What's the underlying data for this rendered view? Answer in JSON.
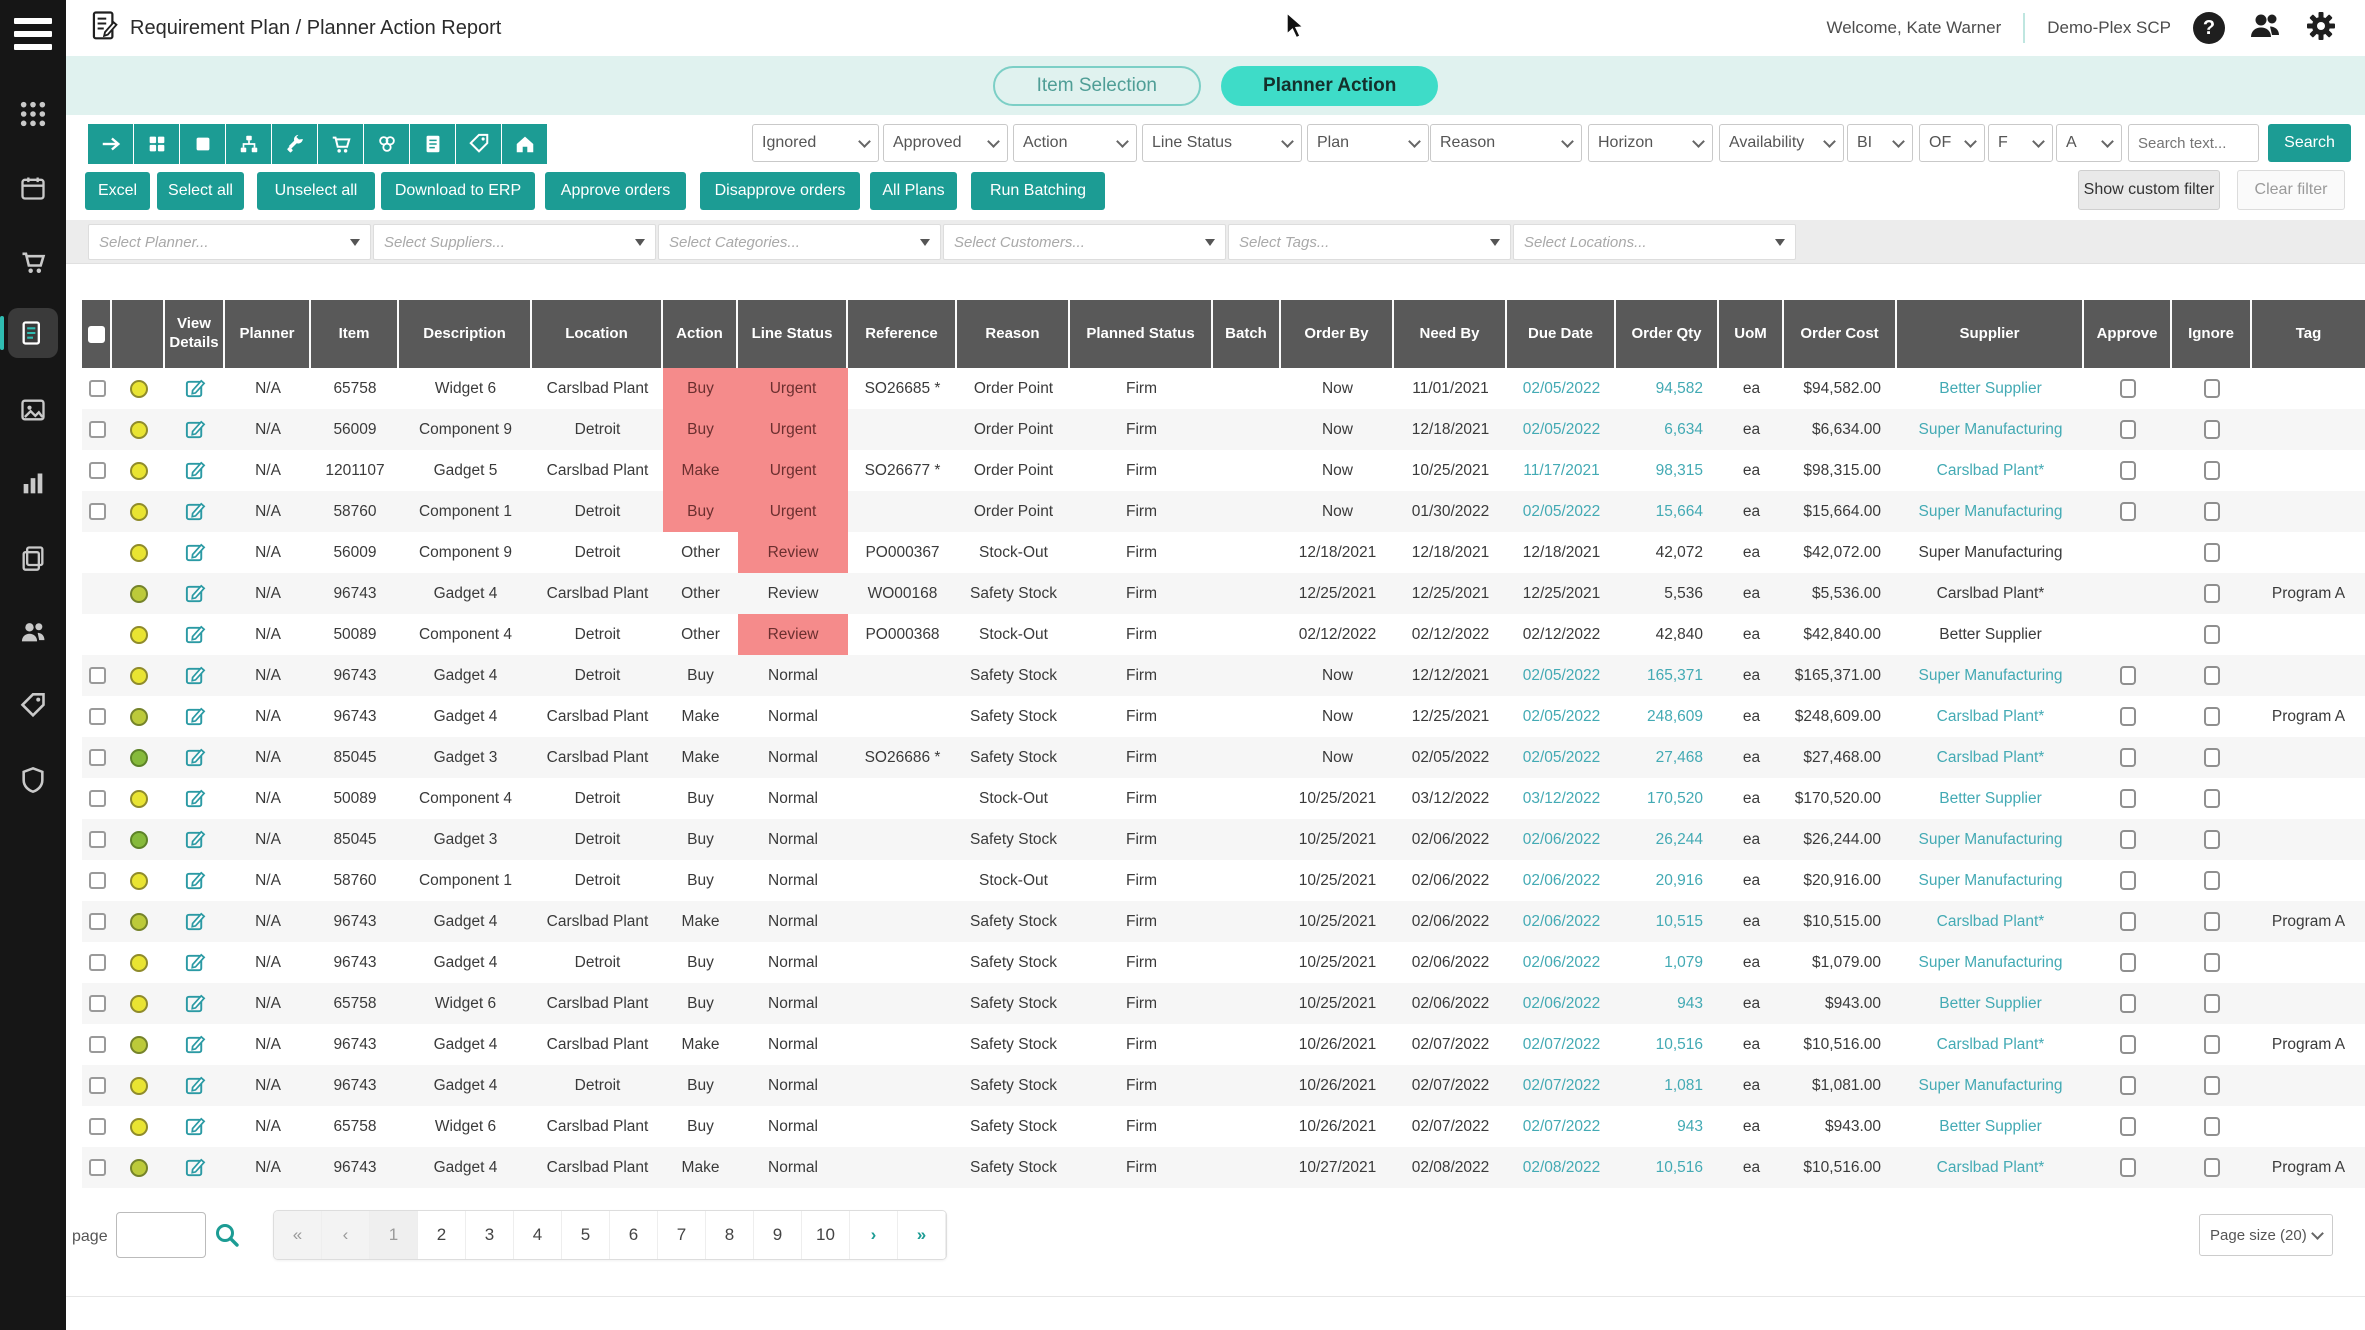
{
  "header": {
    "title": "Requirement Plan / Planner Action Report",
    "welcome": "Welcome, Kate Warner",
    "tenant": "Demo-Plex SCP",
    "help_glyph": "?"
  },
  "sidebar": {
    "items": [
      {
        "icon": "apps-icon",
        "active": false
      },
      {
        "icon": "calendar-icon",
        "active": false
      },
      {
        "icon": "cart-icon",
        "active": false
      },
      {
        "icon": "report-icon",
        "active": true
      },
      {
        "icon": "window-icon",
        "active": false
      },
      {
        "icon": "chart-icon",
        "active": false
      },
      {
        "icon": "copy-icon",
        "active": false
      },
      {
        "icon": "team-icon",
        "active": false
      },
      {
        "icon": "tag-icon",
        "active": false
      },
      {
        "icon": "shield-icon",
        "active": false
      }
    ]
  },
  "tabs": [
    {
      "label": "Item Selection",
      "active": false
    },
    {
      "label": "Planner Action",
      "active": true
    }
  ],
  "toolbar": {
    "icon_buttons": [
      "arrow-right-icon",
      "grid-icon",
      "square-icon",
      "sitemap-icon",
      "wrench-icon",
      "cart-icon",
      "cubes-icon",
      "document-icon",
      "tag-icon",
      "home-icon"
    ],
    "dropdowns": [
      "Ignored",
      "Approved",
      "Action",
      "Line Status",
      "Plan",
      "Reason",
      "Horizon",
      "Availability",
      "BI",
      "OF",
      "F",
      "A"
    ],
    "search_placeholder": "Search text...",
    "search_label": "Search"
  },
  "actions": {
    "buttons": [
      "Excel",
      "Select all",
      "Unselect all",
      "Download to ERP",
      "Approve orders",
      "Disapprove orders",
      "All Plans",
      "Run Batching"
    ],
    "show_custom_filter": "Show custom filter",
    "clear_filter": "Clear filter"
  },
  "filters": {
    "placeholders": [
      "Select Planner...",
      "Select Suppliers...",
      "Select Categories...",
      "Select Customers...",
      "Select Tags...",
      "Select Locations..."
    ]
  },
  "table": {
    "columns": [
      "",
      "",
      "View Details",
      "Planner",
      "Item",
      "Description",
      "Location",
      "Action",
      "Line Status",
      "Reference",
      "Reason",
      "Planned Status",
      "Batch",
      "Order By",
      "Need By",
      "Due Date",
      "Order Qty",
      "UoM",
      "Order Cost",
      "Supplier",
      "Approve",
      "Ignore",
      "Tag"
    ],
    "rows": [
      {
        "sel": true,
        "dot": "yellow",
        "planner": "N/A",
        "item": "65758",
        "desc": "Widget 6",
        "loc": "Carslbad Plant",
        "action": "Buy",
        "action_hl": true,
        "ls": "Urgent",
        "ls_hl": true,
        "ref": "SO26685 *",
        "reason": "Order Point",
        "ps": "Firm",
        "batch": "",
        "order_by": "Now",
        "need_by": "11/01/2021",
        "due": "02/05/2022",
        "qty": "94,582",
        "uom": "ea",
        "cost": "$94,582.00",
        "supplier": "Better Supplier",
        "link": true,
        "approve_cb": true,
        "ignore_cb": true,
        "tag": ""
      },
      {
        "sel": true,
        "dot": "yellow",
        "planner": "N/A",
        "item": "56009",
        "desc": "Component 9",
        "loc": "Detroit",
        "action": "Buy",
        "action_hl": true,
        "ls": "Urgent",
        "ls_hl": true,
        "ref": "",
        "reason": "Order Point",
        "ps": "Firm",
        "batch": "",
        "order_by": "Now",
        "need_by": "12/18/2021",
        "due": "02/05/2022",
        "qty": "6,634",
        "uom": "ea",
        "cost": "$6,634.00",
        "supplier": "Super Manufacturing",
        "link": true,
        "approve_cb": true,
        "ignore_cb": true,
        "tag": ""
      },
      {
        "sel": true,
        "dot": "yellow",
        "planner": "N/A",
        "item": "1201107",
        "desc": "Gadget 5",
        "loc": "Carslbad Plant",
        "action": "Make",
        "action_hl": true,
        "ls": "Urgent",
        "ls_hl": true,
        "ref": "SO26677 *",
        "reason": "Order Point",
        "ps": "Firm",
        "batch": "",
        "order_by": "Now",
        "need_by": "10/25/2021",
        "due": "11/17/2021",
        "qty": "98,315",
        "uom": "ea",
        "cost": "$98,315.00",
        "supplier": "Carslbad Plant*",
        "link": true,
        "approve_cb": true,
        "ignore_cb": true,
        "tag": ""
      },
      {
        "sel": true,
        "dot": "yellow",
        "planner": "N/A",
        "item": "58760",
        "desc": "Component 1",
        "loc": "Detroit",
        "action": "Buy",
        "action_hl": true,
        "ls": "Urgent",
        "ls_hl": true,
        "ref": "",
        "reason": "Order Point",
        "ps": "Firm",
        "batch": "",
        "order_by": "Now",
        "need_by": "01/30/2022",
        "due": "02/05/2022",
        "qty": "15,664",
        "uom": "ea",
        "cost": "$15,664.00",
        "supplier": "Super Manufacturing",
        "link": true,
        "approve_cb": true,
        "ignore_cb": true,
        "tag": ""
      },
      {
        "sel": false,
        "dot": "yellow",
        "planner": "N/A",
        "item": "56009",
        "desc": "Component 9",
        "loc": "Detroit",
        "action": "Other",
        "action_hl": false,
        "ls": "Review",
        "ls_hl": true,
        "ref": "PO000367",
        "reason": "Stock-Out",
        "ps": "Firm",
        "batch": "",
        "order_by": "12/18/2021",
        "need_by": "12/18/2021",
        "due": "12/18/2021",
        "qty": "42,072",
        "uom": "ea",
        "cost": "$42,072.00",
        "supplier": "Super Manufacturing",
        "link": false,
        "approve_cb": false,
        "ignore_cb": true,
        "tag": ""
      },
      {
        "sel": false,
        "dot": "olive",
        "planner": "N/A",
        "item": "96743",
        "desc": "Gadget 4",
        "loc": "Carslbad Plant",
        "action": "Other",
        "action_hl": false,
        "ls": "Review",
        "ls_hl": false,
        "ref": "WO00168",
        "reason": "Safety Stock",
        "ps": "Firm",
        "batch": "",
        "order_by": "12/25/2021",
        "need_by": "12/25/2021",
        "due": "12/25/2021",
        "qty": "5,536",
        "uom": "ea",
        "cost": "$5,536.00",
        "supplier": "Carslbad Plant*",
        "link": false,
        "approve_cb": false,
        "ignore_cb": true,
        "tag": "Program A"
      },
      {
        "sel": false,
        "dot": "yellow",
        "planner": "N/A",
        "item": "50089",
        "desc": "Component 4",
        "loc": "Detroit",
        "action": "Other",
        "action_hl": false,
        "ls": "Review",
        "ls_hl": true,
        "ref": "PO000368",
        "reason": "Stock-Out",
        "ps": "Firm",
        "batch": "",
        "order_by": "02/12/2022",
        "need_by": "02/12/2022",
        "due": "02/12/2022",
        "qty": "42,840",
        "uom": "ea",
        "cost": "$42,840.00",
        "supplier": "Better Supplier",
        "link": false,
        "approve_cb": false,
        "ignore_cb": true,
        "tag": ""
      },
      {
        "sel": true,
        "dot": "yellow",
        "planner": "N/A",
        "item": "96743",
        "desc": "Gadget 4",
        "loc": "Detroit",
        "action": "Buy",
        "action_hl": false,
        "ls": "Normal",
        "ls_hl": false,
        "ref": "",
        "reason": "Safety Stock",
        "ps": "Firm",
        "batch": "",
        "order_by": "Now",
        "need_by": "12/12/2021",
        "due": "02/05/2022",
        "qty": "165,371",
        "uom": "ea",
        "cost": "$165,371.00",
        "supplier": "Super Manufacturing",
        "link": true,
        "approve_cb": true,
        "ignore_cb": true,
        "tag": ""
      },
      {
        "sel": true,
        "dot": "olive",
        "planner": "N/A",
        "item": "96743",
        "desc": "Gadget 4",
        "loc": "Carslbad Plant",
        "action": "Make",
        "action_hl": false,
        "ls": "Normal",
        "ls_hl": false,
        "ref": "",
        "reason": "Safety Stock",
        "ps": "Firm",
        "batch": "",
        "order_by": "Now",
        "need_by": "12/25/2021",
        "due": "02/05/2022",
        "qty": "248,609",
        "uom": "ea",
        "cost": "$248,609.00",
        "supplier": "Carslbad Plant*",
        "link": true,
        "approve_cb": true,
        "ignore_cb": true,
        "tag": "Program A"
      },
      {
        "sel": true,
        "dot": "green",
        "planner": "N/A",
        "item": "85045",
        "desc": "Gadget 3",
        "loc": "Carslbad Plant",
        "action": "Make",
        "action_hl": false,
        "ls": "Normal",
        "ls_hl": false,
        "ref": "SO26686 *",
        "reason": "Safety Stock",
        "ps": "Firm",
        "batch": "",
        "order_by": "Now",
        "need_by": "02/05/2022",
        "due": "02/05/2022",
        "qty": "27,468",
        "uom": "ea",
        "cost": "$27,468.00",
        "supplier": "Carslbad Plant*",
        "link": true,
        "approve_cb": true,
        "ignore_cb": true,
        "tag": ""
      },
      {
        "sel": true,
        "dot": "yellow",
        "planner": "N/A",
        "item": "50089",
        "desc": "Component 4",
        "loc": "Detroit",
        "action": "Buy",
        "action_hl": false,
        "ls": "Normal",
        "ls_hl": false,
        "ref": "",
        "reason": "Stock-Out",
        "ps": "Firm",
        "batch": "",
        "order_by": "10/25/2021",
        "need_by": "03/12/2022",
        "due": "03/12/2022",
        "qty": "170,520",
        "uom": "ea",
        "cost": "$170,520.00",
        "supplier": "Better Supplier",
        "link": true,
        "approve_cb": true,
        "ignore_cb": true,
        "tag": ""
      },
      {
        "sel": true,
        "dot": "green",
        "planner": "N/A",
        "item": "85045",
        "desc": "Gadget 3",
        "loc": "Detroit",
        "action": "Buy",
        "action_hl": false,
        "ls": "Normal",
        "ls_hl": false,
        "ref": "",
        "reason": "Safety Stock",
        "ps": "Firm",
        "batch": "",
        "order_by": "10/25/2021",
        "need_by": "02/06/2022",
        "due": "02/06/2022",
        "qty": "26,244",
        "uom": "ea",
        "cost": "$26,244.00",
        "supplier": "Super Manufacturing",
        "link": true,
        "approve_cb": true,
        "ignore_cb": true,
        "tag": ""
      },
      {
        "sel": true,
        "dot": "yellow",
        "planner": "N/A",
        "item": "58760",
        "desc": "Component 1",
        "loc": "Detroit",
        "action": "Buy",
        "action_hl": false,
        "ls": "Normal",
        "ls_hl": false,
        "ref": "",
        "reason": "Stock-Out",
        "ps": "Firm",
        "batch": "",
        "order_by": "10/25/2021",
        "need_by": "02/06/2022",
        "due": "02/06/2022",
        "qty": "20,916",
        "uom": "ea",
        "cost": "$20,916.00",
        "supplier": "Super Manufacturing",
        "link": true,
        "approve_cb": true,
        "ignore_cb": true,
        "tag": ""
      },
      {
        "sel": true,
        "dot": "olive",
        "planner": "N/A",
        "item": "96743",
        "desc": "Gadget 4",
        "loc": "Carslbad Plant",
        "action": "Make",
        "action_hl": false,
        "ls": "Normal",
        "ls_hl": false,
        "ref": "",
        "reason": "Safety Stock",
        "ps": "Firm",
        "batch": "",
        "order_by": "10/25/2021",
        "need_by": "02/06/2022",
        "due": "02/06/2022",
        "qty": "10,515",
        "uom": "ea",
        "cost": "$10,515.00",
        "supplier": "Carslbad Plant*",
        "link": true,
        "approve_cb": true,
        "ignore_cb": true,
        "tag": "Program A"
      },
      {
        "sel": true,
        "dot": "yellow",
        "planner": "N/A",
        "item": "96743",
        "desc": "Gadget 4",
        "loc": "Detroit",
        "action": "Buy",
        "action_hl": false,
        "ls": "Normal",
        "ls_hl": false,
        "ref": "",
        "reason": "Safety Stock",
        "ps": "Firm",
        "batch": "",
        "order_by": "10/25/2021",
        "need_by": "02/06/2022",
        "due": "02/06/2022",
        "qty": "1,079",
        "uom": "ea",
        "cost": "$1,079.00",
        "supplier": "Super Manufacturing",
        "link": true,
        "approve_cb": true,
        "ignore_cb": true,
        "tag": ""
      },
      {
        "sel": true,
        "dot": "yellow",
        "planner": "N/A",
        "item": "65758",
        "desc": "Widget 6",
        "loc": "Carslbad Plant",
        "action": "Buy",
        "action_hl": false,
        "ls": "Normal",
        "ls_hl": false,
        "ref": "",
        "reason": "Safety Stock",
        "ps": "Firm",
        "batch": "",
        "order_by": "10/25/2021",
        "need_by": "02/06/2022",
        "due": "02/06/2022",
        "qty": "943",
        "uom": "ea",
        "cost": "$943.00",
        "supplier": "Better Supplier",
        "link": true,
        "approve_cb": true,
        "ignore_cb": true,
        "tag": ""
      },
      {
        "sel": true,
        "dot": "olive",
        "planner": "N/A",
        "item": "96743",
        "desc": "Gadget 4",
        "loc": "Carslbad Plant",
        "action": "Make",
        "action_hl": false,
        "ls": "Normal",
        "ls_hl": false,
        "ref": "",
        "reason": "Safety Stock",
        "ps": "Firm",
        "batch": "",
        "order_by": "10/26/2021",
        "need_by": "02/07/2022",
        "due": "02/07/2022",
        "qty": "10,516",
        "uom": "ea",
        "cost": "$10,516.00",
        "supplier": "Carslbad Plant*",
        "link": true,
        "approve_cb": true,
        "ignore_cb": true,
        "tag": "Program A"
      },
      {
        "sel": true,
        "dot": "yellow",
        "planner": "N/A",
        "item": "96743",
        "desc": "Gadget 4",
        "loc": "Detroit",
        "action": "Buy",
        "action_hl": false,
        "ls": "Normal",
        "ls_hl": false,
        "ref": "",
        "reason": "Safety Stock",
        "ps": "Firm",
        "batch": "",
        "order_by": "10/26/2021",
        "need_by": "02/07/2022",
        "due": "02/07/2022",
        "qty": "1,081",
        "uom": "ea",
        "cost": "$1,081.00",
        "supplier": "Super Manufacturing",
        "link": true,
        "approve_cb": true,
        "ignore_cb": true,
        "tag": ""
      },
      {
        "sel": true,
        "dot": "yellow",
        "planner": "N/A",
        "item": "65758",
        "desc": "Widget 6",
        "loc": "Carslbad Plant",
        "action": "Buy",
        "action_hl": false,
        "ls": "Normal",
        "ls_hl": false,
        "ref": "",
        "reason": "Safety Stock",
        "ps": "Firm",
        "batch": "",
        "order_by": "10/26/2021",
        "need_by": "02/07/2022",
        "due": "02/07/2022",
        "qty": "943",
        "uom": "ea",
        "cost": "$943.00",
        "supplier": "Better Supplier",
        "link": true,
        "approve_cb": true,
        "ignore_cb": true,
        "tag": ""
      },
      {
        "sel": true,
        "dot": "olive",
        "planner": "N/A",
        "item": "96743",
        "desc": "Gadget 4",
        "loc": "Carslbad Plant",
        "action": "Make",
        "action_hl": false,
        "ls": "Normal",
        "ls_hl": false,
        "ref": "",
        "reason": "Safety Stock",
        "ps": "Firm",
        "batch": "",
        "order_by": "10/27/2021",
        "need_by": "02/08/2022",
        "due": "02/08/2022",
        "qty": "10,516",
        "uom": "ea",
        "cost": "$10,516.00",
        "supplier": "Carslbad Plant*",
        "link": true,
        "approve_cb": true,
        "ignore_cb": true,
        "tag": "Program A"
      }
    ]
  },
  "pagination": {
    "page_label": "page",
    "page_input_value": "",
    "pages": [
      "1",
      "2",
      "3",
      "4",
      "5",
      "6",
      "7",
      "8",
      "9",
      "10"
    ],
    "current_page": "1",
    "first_label": "«",
    "prev_label": "‹",
    "next_label": "›",
    "last_label": "»",
    "page_size_label": "Page size (20)"
  },
  "colors": {
    "accent": "#1c9c94",
    "tab_active": "#3edcc8",
    "band": "#e0f2ef",
    "grid_header": "#595959",
    "highlight": "#f58b8b",
    "link": "#43aab4",
    "dot_yellow": "#e9e432",
    "dot_olive": "#bcca3a",
    "dot_green": "#86ba3b"
  }
}
